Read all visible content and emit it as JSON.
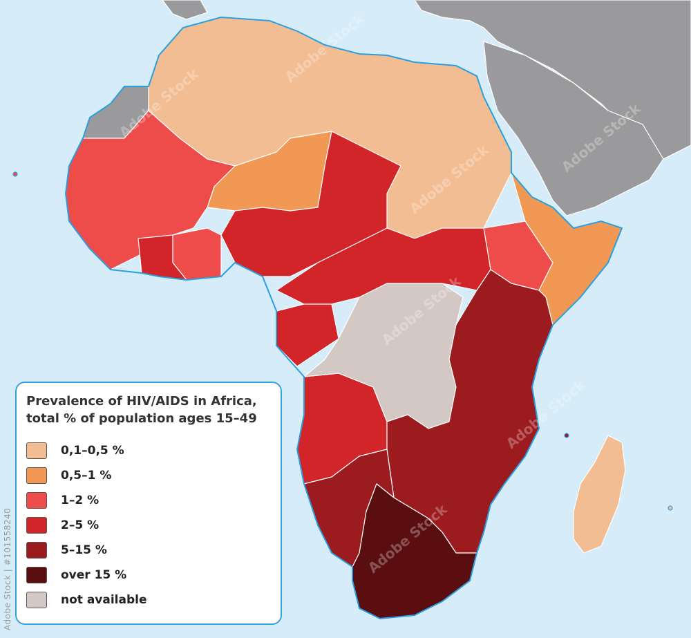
{
  "map": {
    "title_lines": [
      "Prevalence of HIV/AIDS in Africa,",
      "total % of population ages 15–49"
    ],
    "colors": {
      "ocean": "#d6ecf8",
      "coast": "#2a9fe0",
      "outside_region": "#9a9a9c",
      "border": "#ffffff"
    },
    "legend": [
      {
        "label": "0,1–0,5 %",
        "color": "#f3bd93"
      },
      {
        "label": "0,5–1 %",
        "color": "#f29855"
      },
      {
        "label": "1–2 %",
        "color": "#ed4c4b"
      },
      {
        "label": "2–5 %",
        "color": "#d2252a"
      },
      {
        "label": "5–15 %",
        "color": "#9b1b1f"
      },
      {
        "label": "over 15 %",
        "color": "#5a0e10"
      },
      {
        "label": "not available",
        "color": "#d4c8c4"
      }
    ]
  },
  "stock_id": "Adobe Stock | #101558240",
  "watermark_text": "Adobe Stock"
}
